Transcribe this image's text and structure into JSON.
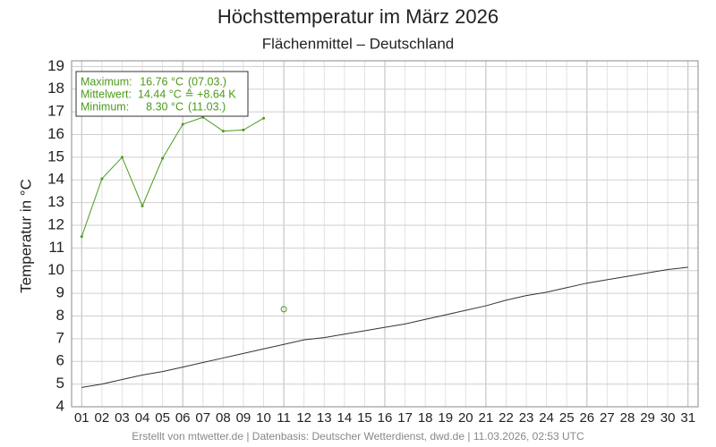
{
  "chart_data": {
    "type": "line",
    "title": "Höchsttemperatur im März 2026",
    "subtitle": "Flächenmittel – Deutschland",
    "y_label": "Temperatur in °C",
    "footer": "Erstellt von mtwetter.de | Datenbasis: Deutscher Wetterdienst, dwd.de | 11.03.2026, 02:53 UTC",
    "stats": [
      [
        "Maximum:",
        "16.76 °C",
        "(07.03.)"
      ],
      [
        "Mittelwert:",
        "14.44 °C ≙ +8.64 K",
        ""
      ],
      [
        "Minimum:",
        "8.30 °C",
        "(11.03.)"
      ]
    ],
    "categories": [
      "01",
      "02",
      "03",
      "04",
      "05",
      "06",
      "07",
      "08",
      "09",
      "10",
      "11",
      "12",
      "13",
      "14",
      "15",
      "16",
      "17",
      "18",
      "19",
      "20",
      "21",
      "22",
      "23",
      "24",
      "25",
      "26",
      "27",
      "28",
      "29",
      "30",
      "31"
    ],
    "series": [
      {
        "color": "#4a9a1a",
        "style": "line",
        "values": [
          11.5,
          14.05,
          15.0,
          12.85,
          14.95,
          16.45,
          16.76,
          16.15,
          16.2,
          16.72,
          null,
          null,
          null,
          null,
          null,
          null,
          null,
          null,
          null,
          null,
          null,
          null,
          null,
          null,
          null,
          null,
          null,
          null,
          null,
          null,
          null
        ]
      },
      {
        "color": "#4a9a1a",
        "style": "open-point",
        "values": [
          null,
          null,
          null,
          null,
          null,
          null,
          null,
          null,
          null,
          null,
          8.3,
          null,
          null,
          null,
          null,
          null,
          null,
          null,
          null,
          null,
          null,
          null,
          null,
          null,
          null,
          null,
          null,
          null,
          null,
          null,
          null
        ]
      },
      {
        "color": "#333333",
        "style": "line-plain",
        "values": [
          4.85,
          5.0,
          5.2,
          5.4,
          5.55,
          5.75,
          5.95,
          6.15,
          6.35,
          6.55,
          6.75,
          6.95,
          7.05,
          7.2,
          7.35,
          7.5,
          7.65,
          7.85,
          8.05,
          8.25,
          8.45,
          8.7,
          8.9,
          9.05,
          9.25,
          9.45,
          9.6,
          9.75,
          9.9,
          10.05,
          10.15
        ]
      }
    ],
    "ylim": [
      4,
      19.25
    ],
    "yticks": [
      4,
      5,
      6,
      7,
      8,
      9,
      10,
      11,
      12,
      13,
      14,
      15,
      16,
      17,
      18,
      19
    ],
    "grid": true
  }
}
